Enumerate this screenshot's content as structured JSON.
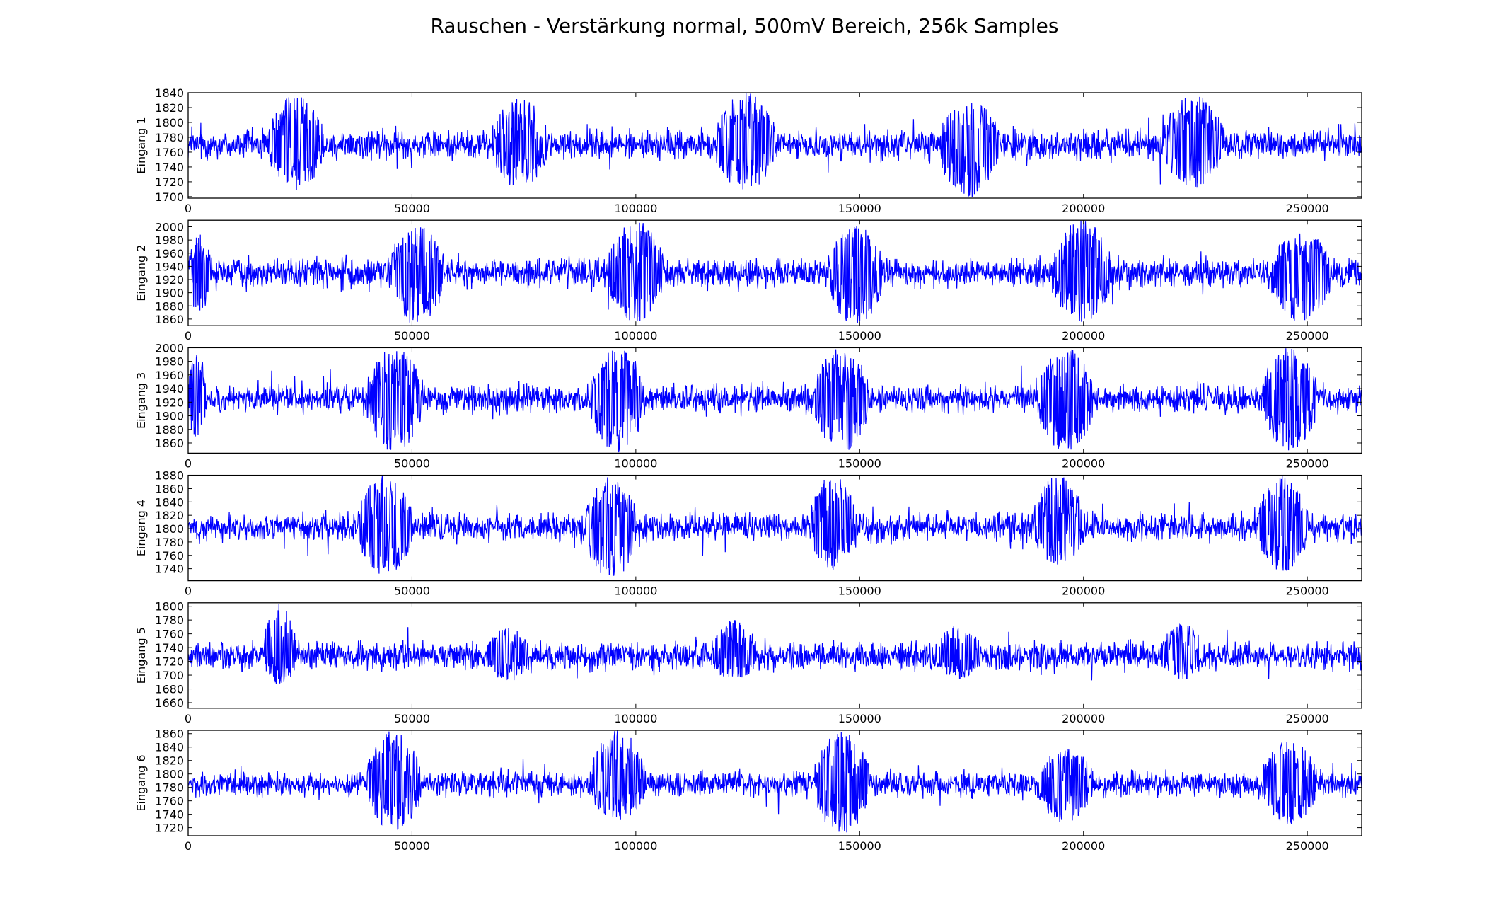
{
  "figure": {
    "title": "Rauschen - Verstärkung normal, 500mV Bereich, 256k Samples"
  },
  "colors": {
    "line": "#0000ff",
    "axes": "#000000",
    "background": "#ffffff"
  },
  "chart_data": [
    {
      "type": "line",
      "ylabel": "Eingang 1",
      "xlim": [
        0,
        262144
      ],
      "ylim": [
        1698,
        1840
      ],
      "xticks": [
        0,
        50000,
        100000,
        150000,
        200000,
        250000
      ],
      "yticks": [
        1700,
        1720,
        1740,
        1760,
        1780,
        1800,
        1820,
        1840
      ],
      "grid": false,
      "series": [
        {
          "baseline": 1770,
          "noise_amplitude": 13,
          "bursts": [
            {
              "x_start": 18000,
              "x_end": 30000,
              "peak_min": 1708,
              "peak_max": 1837
            },
            {
              "x_start": 68000,
              "x_end": 80000,
              "peak_min": 1710,
              "peak_max": 1835
            },
            {
              "x_start": 118000,
              "x_end": 131000,
              "peak_min": 1708,
              "peak_max": 1840
            },
            {
              "x_start": 168000,
              "x_end": 181000,
              "peak_min": 1698,
              "peak_max": 1830
            },
            {
              "x_start": 218000,
              "x_end": 231000,
              "peak_min": 1711,
              "peak_max": 1838
            }
          ]
        }
      ]
    },
    {
      "type": "line",
      "ylabel": "Eingang 2",
      "xlim": [
        0,
        262144
      ],
      "ylim": [
        1850,
        2010
      ],
      "xticks": [
        0,
        50000,
        100000,
        150000,
        200000,
        250000
      ],
      "yticks": [
        1860,
        1880,
        1900,
        1920,
        1940,
        1960,
        1980,
        2000
      ],
      "grid": false,
      "series": [
        {
          "baseline": 1930,
          "noise_amplitude": 14,
          "bursts": [
            {
              "x_start": 0,
              "x_end": 5000,
              "peak_min": 1868,
              "peak_max": 1990
            },
            {
              "x_start": 45000,
              "x_end": 57000,
              "peak_min": 1850,
              "peak_max": 2005
            },
            {
              "x_start": 94000,
              "x_end": 106000,
              "peak_min": 1855,
              "peak_max": 2010
            },
            {
              "x_start": 143000,
              "x_end": 155000,
              "peak_min": 1850,
              "peak_max": 2005
            },
            {
              "x_start": 193000,
              "x_end": 206000,
              "peak_min": 1855,
              "peak_max": 2010
            },
            {
              "x_start": 242000,
              "x_end": 255000,
              "peak_min": 1855,
              "peak_max": 1995
            }
          ]
        }
      ]
    },
    {
      "type": "line",
      "ylabel": "Eingang 3",
      "xlim": [
        0,
        262144
      ],
      "ylim": [
        1845,
        2000
      ],
      "xticks": [
        0,
        50000,
        100000,
        150000,
        200000,
        250000
      ],
      "yticks": [
        1860,
        1880,
        1900,
        1920,
        1940,
        1960,
        1980,
        2000
      ],
      "grid": false,
      "series": [
        {
          "baseline": 1925,
          "noise_amplitude": 13,
          "bursts": [
            {
              "x_start": 0,
              "x_end": 4000,
              "peak_min": 1860,
              "peak_max": 1995
            },
            {
              "x_start": 40000,
              "x_end": 52000,
              "peak_min": 1845,
              "peak_max": 2000
            },
            {
              "x_start": 90000,
              "x_end": 102000,
              "peak_min": 1845,
              "peak_max": 2000
            },
            {
              "x_start": 140000,
              "x_end": 152000,
              "peak_min": 1845,
              "peak_max": 2000
            },
            {
              "x_start": 190000,
              "x_end": 202000,
              "peak_min": 1847,
              "peak_max": 2000
            },
            {
              "x_start": 240000,
              "x_end": 252000,
              "peak_min": 1848,
              "peak_max": 2000
            }
          ]
        }
      ]
    },
    {
      "type": "line",
      "ylabel": "Eingang 4",
      "xlim": [
        0,
        262144
      ],
      "ylim": [
        1722,
        1880
      ],
      "xticks": [
        0,
        50000,
        100000,
        150000,
        200000,
        250000
      ],
      "yticks": [
        1740,
        1760,
        1780,
        1800,
        1820,
        1840,
        1860,
        1880
      ],
      "grid": false,
      "series": [
        {
          "baseline": 1802,
          "noise_amplitude": 13,
          "bursts": [
            {
              "x_start": 38000,
              "x_end": 50000,
              "peak_min": 1730,
              "peak_max": 1880
            },
            {
              "x_start": 89000,
              "x_end": 100000,
              "peak_min": 1722,
              "peak_max": 1880
            },
            {
              "x_start": 139000,
              "x_end": 149000,
              "peak_min": 1740,
              "peak_max": 1880
            },
            {
              "x_start": 189000,
              "x_end": 200000,
              "peak_min": 1745,
              "peak_max": 1880
            },
            {
              "x_start": 239000,
              "x_end": 250000,
              "peak_min": 1735,
              "peak_max": 1880
            }
          ]
        }
      ]
    },
    {
      "type": "line",
      "ylabel": "Eingang 5",
      "xlim": [
        0,
        262144
      ],
      "ylim": [
        1652,
        1805
      ],
      "xticks": [
        0,
        50000,
        100000,
        150000,
        200000,
        250000
      ],
      "yticks": [
        1660,
        1680,
        1700,
        1720,
        1740,
        1760,
        1780,
        1800
      ],
      "grid": false,
      "series": [
        {
          "baseline": 1728,
          "noise_amplitude": 13,
          "bursts": [
            {
              "x_start": 17000,
              "x_end": 24000,
              "peak_min": 1685,
              "peak_max": 1805
            },
            {
              "x_start": 67000,
              "x_end": 76000,
              "peak_min": 1690,
              "peak_max": 1770
            },
            {
              "x_start": 117000,
              "x_end": 127000,
              "peak_min": 1692,
              "peak_max": 1782
            },
            {
              "x_start": 167000,
              "x_end": 177000,
              "peak_min": 1695,
              "peak_max": 1772
            },
            {
              "x_start": 217000,
              "x_end": 227000,
              "peak_min": 1693,
              "peak_max": 1775
            }
          ]
        }
      ]
    },
    {
      "type": "line",
      "ylabel": "Eingang 6",
      "xlim": [
        0,
        262144
      ],
      "ylim": [
        1708,
        1865
      ],
      "xticks": [
        0,
        50000,
        100000,
        150000,
        200000,
        250000
      ],
      "yticks": [
        1720,
        1740,
        1760,
        1780,
        1800,
        1820,
        1840,
        1860
      ],
      "grid": false,
      "series": [
        {
          "baseline": 1785,
          "noise_amplitude": 12,
          "bursts": [
            {
              "x_start": 40000,
              "x_end": 52000,
              "peak_min": 1715,
              "peak_max": 1865
            },
            {
              "x_start": 90000,
              "x_end": 102000,
              "peak_min": 1730,
              "peak_max": 1865
            },
            {
              "x_start": 140000,
              "x_end": 152000,
              "peak_min": 1710,
              "peak_max": 1865
            },
            {
              "x_start": 190000,
              "x_end": 202000,
              "peak_min": 1725,
              "peak_max": 1840
            },
            {
              "x_start": 240000,
              "x_end": 252000,
              "peak_min": 1725,
              "peak_max": 1850
            }
          ]
        }
      ]
    }
  ]
}
